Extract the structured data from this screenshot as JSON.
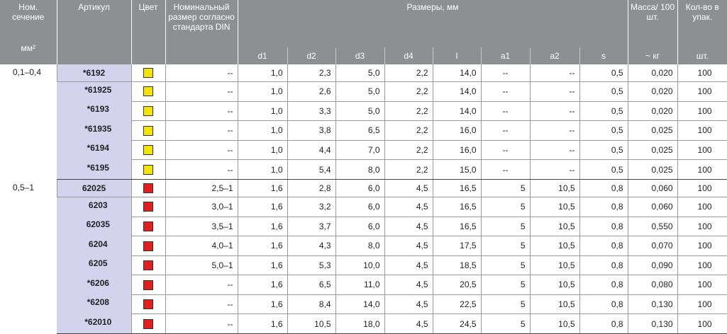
{
  "header": {
    "nom": "Ном. сечение",
    "nom_unit": "мм²",
    "article": "Артикул",
    "color": "Цвет",
    "din": "Номинальный размер согласно стандарта DIN",
    "sizes": "Размеры, мм",
    "mass": "Масса/ 100 шт.",
    "mass_unit": "~ кг",
    "qty": "Кол-во в упак.",
    "qty_unit": "шт.",
    "size_cols": [
      "d1",
      "d2",
      "d3",
      "d4",
      "l",
      "a1",
      "a2",
      "s"
    ]
  },
  "colors": {
    "yellow": "#f5e400",
    "red": "#e02020"
  },
  "groups": [
    {
      "section": "0,1–0,4",
      "color": "yellow",
      "rows": [
        [
          "*6192",
          "--",
          "1,0",
          "2,3",
          "5,0",
          "2,2",
          "14,0",
          "--",
          "--",
          "0,5",
          "0,020",
          "100"
        ],
        [
          "*61925",
          "--",
          "1,0",
          "2,6",
          "5,0",
          "2,2",
          "14,0",
          "--",
          "--",
          "0,5",
          "0,020",
          "100"
        ],
        [
          "*6193",
          "--",
          "1,0",
          "3,3",
          "5,0",
          "2,2",
          "14,0",
          "--",
          "--",
          "0,5",
          "0,020",
          "100"
        ],
        [
          "*61935",
          "--",
          "1,0",
          "3,8",
          "6,5",
          "2,2",
          "16,0",
          "--",
          "--",
          "0,5",
          "0,025",
          "100"
        ],
        [
          "*6194",
          "--",
          "1,0",
          "4,4",
          "7,0",
          "2,2",
          "16,0",
          "--",
          "--",
          "0,5",
          "0,025",
          "100"
        ],
        [
          "*6195",
          "--",
          "1,0",
          "5,4",
          "8,0",
          "2,2",
          "15,0",
          "--",
          "--",
          "0,5",
          "0,025",
          "100"
        ]
      ]
    },
    {
      "section": "0,5–1",
      "color": "red",
      "rows": [
        [
          "62025",
          "2,5–1",
          "1,6",
          "2,8",
          "6,0",
          "4,5",
          "16,5",
          "5",
          "10,5",
          "0,8",
          "0,060",
          "100"
        ],
        [
          "6203",
          "3,0–1",
          "1,6",
          "3,2",
          "6,0",
          "4,5",
          "16,5",
          "5",
          "10,5",
          "0,8",
          "0,060",
          "100"
        ],
        [
          "62035",
          "3,5–1",
          "1,6",
          "3,7",
          "6,0",
          "4,5",
          "16,5",
          "5",
          "10,5",
          "0,8",
          "0,550",
          "100"
        ],
        [
          "6204",
          "4,0–1",
          "1,6",
          "4,3",
          "8,0",
          "4,5",
          "17,5",
          "5",
          "10,5",
          "0,8",
          "0,070",
          "100"
        ],
        [
          "6205",
          "5,0–1",
          "1,6",
          "5,3",
          "10,0",
          "4,5",
          "18,5",
          "5",
          "10,5",
          "0,8",
          "0,090",
          "100"
        ],
        [
          "*6206",
          "--",
          "1,6",
          "6,5",
          "11,0",
          "4,5",
          "20,5",
          "5",
          "10,5",
          "0,8",
          "0,080",
          "100"
        ],
        [
          "*6208",
          "--",
          "1,6",
          "8,4",
          "14,0",
          "4,5",
          "22,5",
          "5",
          "10,5",
          "0,8",
          "0,130",
          "100"
        ],
        [
          "*62010",
          "--",
          "1,6",
          "10,5",
          "18,0",
          "4,5",
          "24,5",
          "5",
          "10,5",
          "0,8",
          "0,130",
          "100"
        ]
      ]
    }
  ]
}
